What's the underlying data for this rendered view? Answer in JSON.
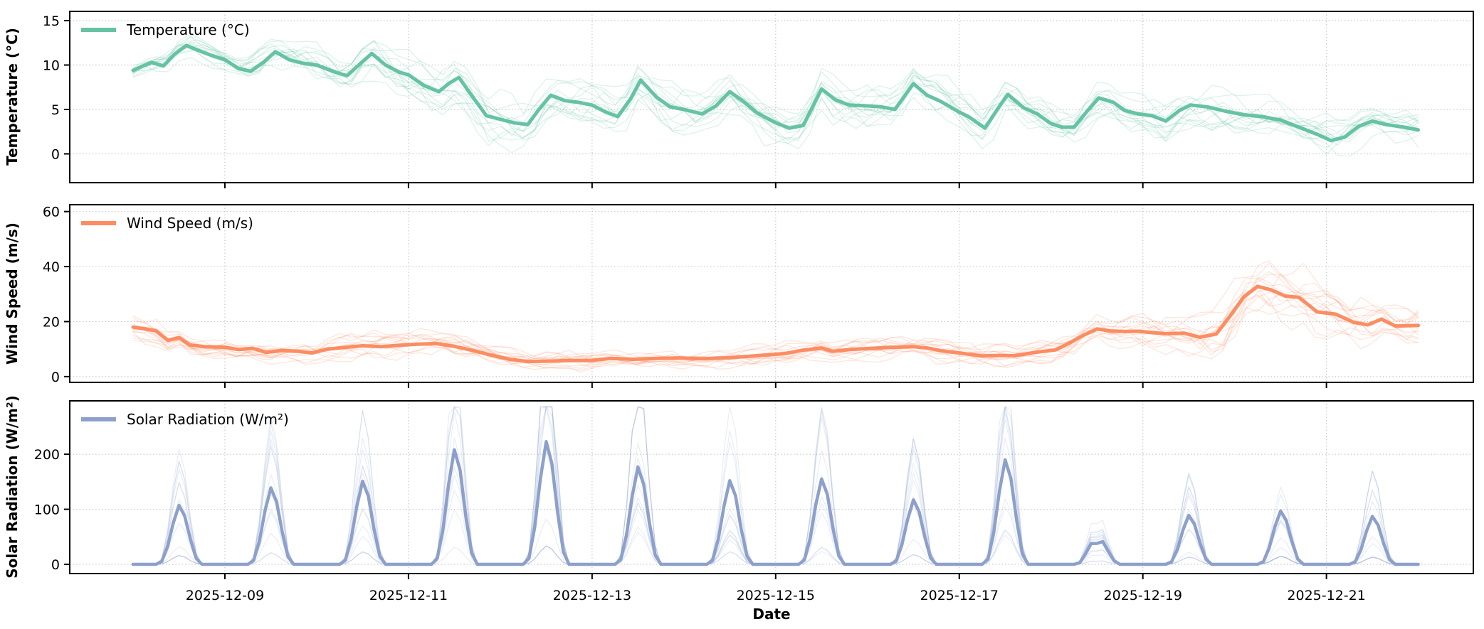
{
  "figure": {
    "kind": "ensemble-weather-forecast",
    "background": "#ffffff",
    "grid_color": "#c9c9c9",
    "spine_color": "#000000"
  },
  "chart_data": {
    "type": "line",
    "x_axis": {
      "label": "Date",
      "tick_labels": [
        "2025-12-09",
        "2025-12-11",
        "2025-12-13",
        "2025-12-15",
        "2025-12-17",
        "2025-12-19",
        "2025-12-21"
      ],
      "tick_positions_days": [
        1,
        3,
        5,
        7,
        9,
        11,
        13
      ],
      "data_start": "2025-12-08",
      "data_end": "2025-12-22",
      "axis_range_days": [
        -0.69,
        14.6
      ],
      "grid": true
    },
    "panels": [
      {
        "id": "temperature",
        "legend_label": "Temperature (°C)",
        "ylabel": "Temperature (°C)",
        "color": "#66c2a5",
        "ylim": [
          -3.24,
          16.04
        ],
        "yticks": [
          0,
          5,
          10,
          15
        ],
        "mean_series_day_value": [
          [
            0,
            9.4
          ],
          [
            0.2,
            10.3
          ],
          [
            0.33,
            9.9
          ],
          [
            0.45,
            11.2
          ],
          [
            0.58,
            12.2
          ],
          [
            0.7,
            11.7
          ],
          [
            0.85,
            11.1
          ],
          [
            1.0,
            10.6
          ],
          [
            1.15,
            9.6
          ],
          [
            1.28,
            9.3
          ],
          [
            1.42,
            10.3
          ],
          [
            1.55,
            11.5
          ],
          [
            1.7,
            10.6
          ],
          [
            1.85,
            10.2
          ],
          [
            2.0,
            10.0
          ],
          [
            2.2,
            9.2
          ],
          [
            2.33,
            8.8
          ],
          [
            2.48,
            10.2
          ],
          [
            2.6,
            11.3
          ],
          [
            2.75,
            10.0
          ],
          [
            2.9,
            9.2
          ],
          [
            3.0,
            8.9
          ],
          [
            3.17,
            7.7
          ],
          [
            3.33,
            7.0
          ],
          [
            3.45,
            8.0
          ],
          [
            3.55,
            8.6
          ],
          [
            3.7,
            6.4
          ],
          [
            3.85,
            4.3
          ],
          [
            4.0,
            3.9
          ],
          [
            4.15,
            3.5
          ],
          [
            4.3,
            3.3
          ],
          [
            4.42,
            5.0
          ],
          [
            4.55,
            6.6
          ],
          [
            4.7,
            6.0
          ],
          [
            4.85,
            5.8
          ],
          [
            5.0,
            5.5
          ],
          [
            5.15,
            4.7
          ],
          [
            5.28,
            4.2
          ],
          [
            5.42,
            6.2
          ],
          [
            5.53,
            8.3
          ],
          [
            5.7,
            6.4
          ],
          [
            5.85,
            5.3
          ],
          [
            6.0,
            5.0
          ],
          [
            6.2,
            4.5
          ],
          [
            6.35,
            5.4
          ],
          [
            6.5,
            7.0
          ],
          [
            6.65,
            5.9
          ],
          [
            6.8,
            4.6
          ],
          [
            7.0,
            3.5
          ],
          [
            7.15,
            2.9
          ],
          [
            7.3,
            3.2
          ],
          [
            7.5,
            7.3
          ],
          [
            7.65,
            6.1
          ],
          [
            7.8,
            5.5
          ],
          [
            8.0,
            5.4
          ],
          [
            8.15,
            5.3
          ],
          [
            8.3,
            5.0
          ],
          [
            8.5,
            7.9
          ],
          [
            8.65,
            6.6
          ],
          [
            8.8,
            5.9
          ],
          [
            9.0,
            4.7
          ],
          [
            9.1,
            4.2
          ],
          [
            9.28,
            2.9
          ],
          [
            9.42,
            5.1
          ],
          [
            9.53,
            6.7
          ],
          [
            9.7,
            5.2
          ],
          [
            9.85,
            4.5
          ],
          [
            10.0,
            3.4
          ],
          [
            10.12,
            3.0
          ],
          [
            10.25,
            3.0
          ],
          [
            10.4,
            4.9
          ],
          [
            10.52,
            6.3
          ],
          [
            10.68,
            5.8
          ],
          [
            10.8,
            4.9
          ],
          [
            10.95,
            4.5
          ],
          [
            11.1,
            4.3
          ],
          [
            11.25,
            3.7
          ],
          [
            11.4,
            4.9
          ],
          [
            11.52,
            5.5
          ],
          [
            11.7,
            5.3
          ],
          [
            11.9,
            4.8
          ],
          [
            12.1,
            4.4
          ],
          [
            12.3,
            4.2
          ],
          [
            12.5,
            3.8
          ],
          [
            12.7,
            3.0
          ],
          [
            12.9,
            2.2
          ],
          [
            13.05,
            1.5
          ],
          [
            13.2,
            1.9
          ],
          [
            13.35,
            3.1
          ],
          [
            13.5,
            3.7
          ],
          [
            13.65,
            3.3
          ],
          [
            13.85,
            3.0
          ],
          [
            14,
            2.7
          ]
        ],
        "ensemble": {
          "members": 14,
          "alpha": 0.22,
          "seed": 7,
          "scale": 0.6,
          "min_value": -3.1,
          "spread_day_value": [
            [
              0,
              1.0
            ],
            [
              1,
              1.6
            ],
            [
              2,
              2.2
            ],
            [
              3,
              2.6
            ],
            [
              4,
              3.0
            ],
            [
              5,
              2.6
            ],
            [
              6,
              2.6
            ],
            [
              7,
              2.4
            ],
            [
              8,
              2.6
            ],
            [
              9,
              2.3
            ],
            [
              10,
              2.3
            ],
            [
              11,
              2.0
            ],
            [
              12,
              2.3
            ],
            [
              13,
              2.4
            ],
            [
              14,
              2.2
            ]
          ]
        }
      },
      {
        "id": "wind-speed",
        "legend_label": "Wind Speed (m/s)",
        "ylabel": "Wind Speed (m/s)",
        "color": "#fc8d62",
        "ylim": [
          -2.1,
          62.5
        ],
        "yticks": [
          0,
          20,
          40,
          60
        ],
        "mean_series_day_value": [
          [
            0,
            18.0
          ],
          [
            0.12,
            17.4
          ],
          [
            0.25,
            16.6
          ],
          [
            0.38,
            13.2
          ],
          [
            0.5,
            14.2
          ],
          [
            0.62,
            11.5
          ],
          [
            0.78,
            10.9
          ],
          [
            1.0,
            10.7
          ],
          [
            1.15,
            9.8
          ],
          [
            1.3,
            10.3
          ],
          [
            1.45,
            8.8
          ],
          [
            1.62,
            9.5
          ],
          [
            1.8,
            9.2
          ],
          [
            1.95,
            8.6
          ],
          [
            2.12,
            10.0
          ],
          [
            2.3,
            10.6
          ],
          [
            2.5,
            11.2
          ],
          [
            2.7,
            10.9
          ],
          [
            2.9,
            11.4
          ],
          [
            3.1,
            11.8
          ],
          [
            3.3,
            12.0
          ],
          [
            3.5,
            11.0
          ],
          [
            3.7,
            9.5
          ],
          [
            3.9,
            7.8
          ],
          [
            4.1,
            6.3
          ],
          [
            4.3,
            5.5
          ],
          [
            4.5,
            5.6
          ],
          [
            4.7,
            5.8
          ],
          [
            5.0,
            5.9
          ],
          [
            5.2,
            6.6
          ],
          [
            5.45,
            6.3
          ],
          [
            5.7,
            6.6
          ],
          [
            5.95,
            6.8
          ],
          [
            6.2,
            6.5
          ],
          [
            6.5,
            6.9
          ],
          [
            6.8,
            7.6
          ],
          [
            7.1,
            8.4
          ],
          [
            7.3,
            9.6
          ],
          [
            7.5,
            10.4
          ],
          [
            7.62,
            9.2
          ],
          [
            7.8,
            9.8
          ],
          [
            8.0,
            10.2
          ],
          [
            8.25,
            10.6
          ],
          [
            8.5,
            10.9
          ],
          [
            8.65,
            10.4
          ],
          [
            8.8,
            9.4
          ],
          [
            9.0,
            8.6
          ],
          [
            9.25,
            7.5
          ],
          [
            9.45,
            7.7
          ],
          [
            9.6,
            7.6
          ],
          [
            9.85,
            8.9
          ],
          [
            10.05,
            9.7
          ],
          [
            10.2,
            12.2
          ],
          [
            10.35,
            15.0
          ],
          [
            10.5,
            17.3
          ],
          [
            10.65,
            16.6
          ],
          [
            10.8,
            16.4
          ],
          [
            10.95,
            16.5
          ],
          [
            11.1,
            16.0
          ],
          [
            11.25,
            15.6
          ],
          [
            11.45,
            15.8
          ],
          [
            11.62,
            14.3
          ],
          [
            11.8,
            15.5
          ],
          [
            11.95,
            22.0
          ],
          [
            12.1,
            29.0
          ],
          [
            12.25,
            32.8
          ],
          [
            12.4,
            31.5
          ],
          [
            12.55,
            29.3
          ],
          [
            12.7,
            28.8
          ],
          [
            12.9,
            23.5
          ],
          [
            13.1,
            22.7
          ],
          [
            13.3,
            19.7
          ],
          [
            13.45,
            18.8
          ],
          [
            13.6,
            20.9
          ],
          [
            13.75,
            18.4
          ],
          [
            14,
            18.6
          ]
        ],
        "ensemble": {
          "members": 14,
          "alpha": 0.22,
          "seed": 11,
          "scale": 0.75,
          "min_value": 0.35,
          "spread_day_value": [
            [
              0,
              5.0
            ],
            [
              0.5,
              4.0
            ],
            [
              1,
              2.6
            ],
            [
              2,
              3.0
            ],
            [
              3,
              4.2
            ],
            [
              4,
              3.2
            ],
            [
              5,
              2.6
            ],
            [
              6,
              2.6
            ],
            [
              7,
              3.0
            ],
            [
              8,
              3.2
            ],
            [
              9,
              3.2
            ],
            [
              10,
              3.6
            ],
            [
              10.5,
              4.5
            ],
            [
              11,
              5.0
            ],
            [
              11.5,
              6.5
            ],
            [
              12,
              9.0
            ],
            [
              12.5,
              9.5
            ],
            [
              13,
              8.0
            ],
            [
              13.5,
              6.5
            ],
            [
              14,
              5.5
            ]
          ]
        }
      },
      {
        "id": "solar-radiation",
        "legend_label": "Solar Radiation (W/m²)",
        "ylabel": "Solar Radiation (W/m²)",
        "color": "#8da0cb",
        "ylim": [
          -16.8,
          297
        ],
        "yticks": [
          0,
          100,
          200
        ],
        "daily_peak_dates": [
          "2025-12-08",
          "2025-12-09",
          "2025-12-10",
          "2025-12-11",
          "2025-12-12",
          "2025-12-13",
          "2025-12-14",
          "2025-12-15",
          "2025-12-16",
          "2025-12-17",
          "2025-12-18",
          "2025-12-19",
          "2025-12-20",
          "2025-12-21"
        ],
        "daily_peak_values": [
          107,
          139,
          151,
          208,
          223,
          177,
          152,
          155,
          117,
          190,
          42,
          89,
          97,
          87
        ],
        "day_profile_fraction_scale": [
          [
            0.27,
            0
          ],
          [
            0.3125,
            0.05
          ],
          [
            0.375,
            0.3
          ],
          [
            0.4375,
            0.7
          ],
          [
            0.5,
            1.0
          ],
          [
            0.5625,
            0.82
          ],
          [
            0.625,
            0.42
          ],
          [
            0.6875,
            0.1
          ],
          [
            0.73,
            0
          ]
        ],
        "flat_day_index": 10,
        "flat_day_profile": [
          [
            0.27,
            0
          ],
          [
            0.3125,
            0.07
          ],
          [
            0.375,
            0.45
          ],
          [
            0.4375,
            0.9
          ],
          [
            0.48,
            0.93
          ],
          [
            0.52,
            0.88
          ],
          [
            0.56,
            1.0
          ],
          [
            0.625,
            0.55
          ],
          [
            0.6875,
            0.15
          ],
          [
            0.73,
            0
          ]
        ],
        "ensemble": {
          "members": 14,
          "alpha": 0.18,
          "seed": 23,
          "scale": 1.0,
          "min_value": 0,
          "max_value": 286,
          "peak_multiplier_clamp": [
            0.15,
            1.95
          ]
        }
      }
    ]
  }
}
